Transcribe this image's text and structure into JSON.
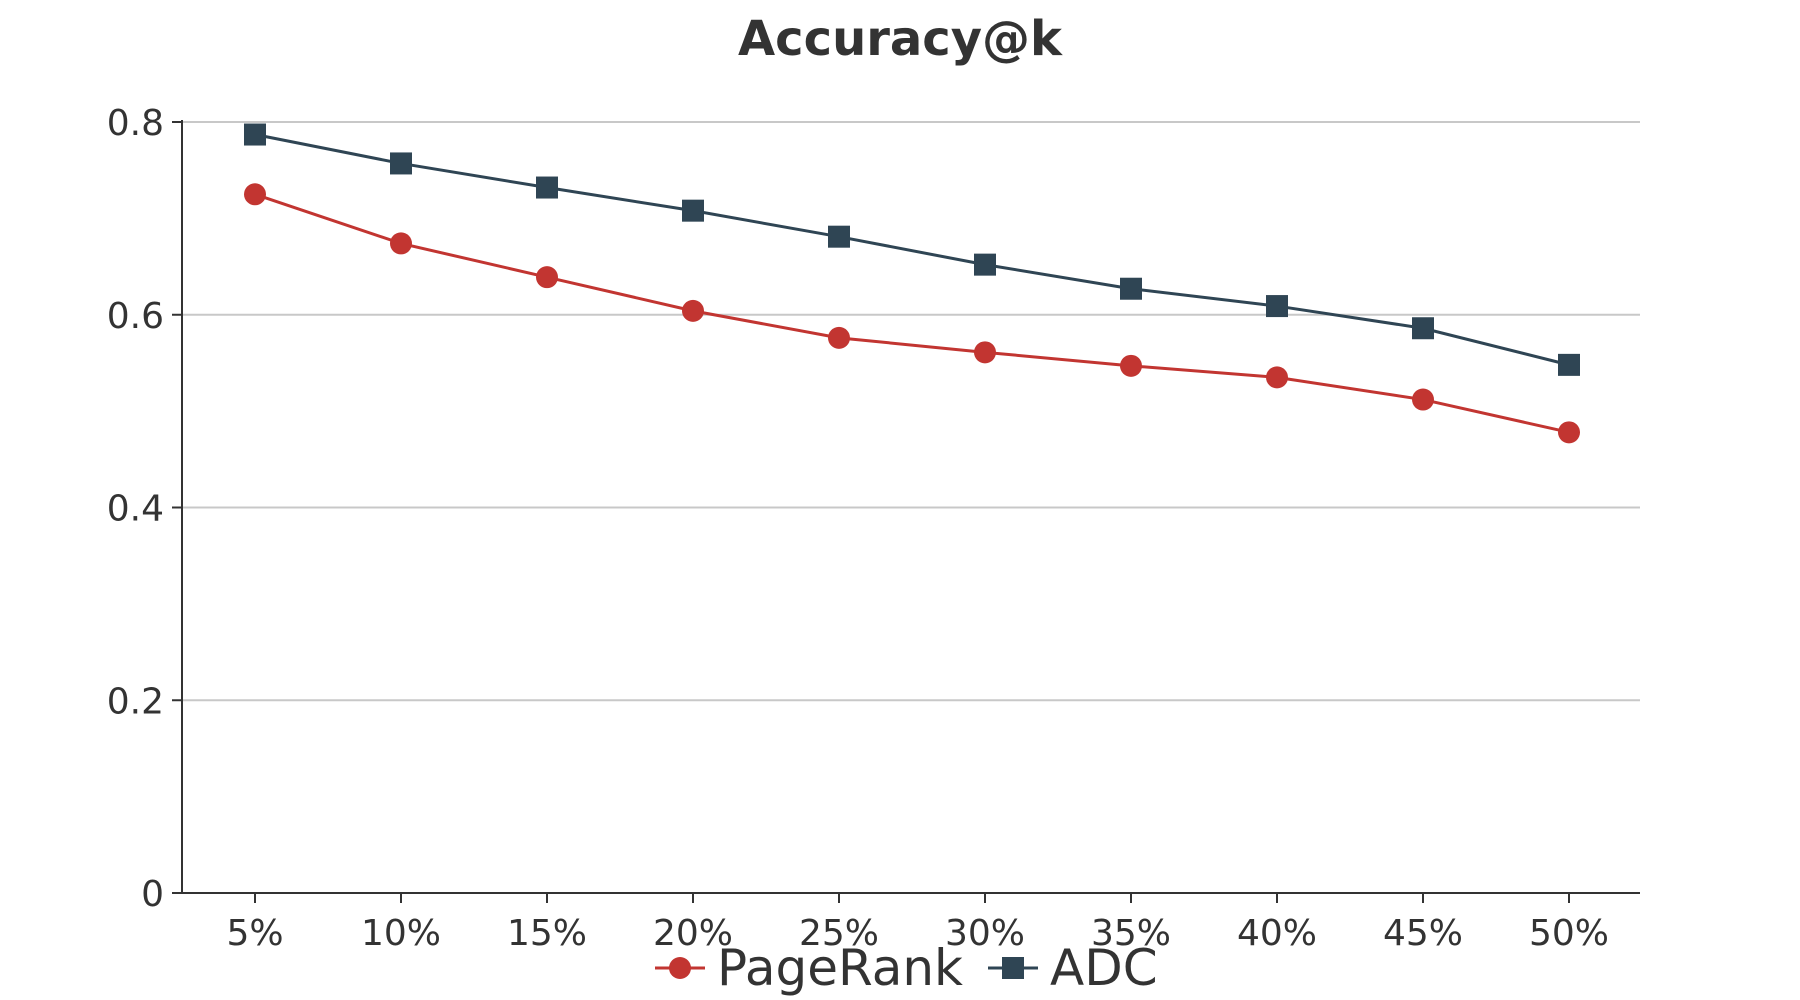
{
  "chart_data": {
    "type": "line",
    "title": "Accuracy@k",
    "xlabel": "",
    "ylabel": "",
    "categories": [
      "5%",
      "10%",
      "15%",
      "20%",
      "25%",
      "30%",
      "35%",
      "40%",
      "45%",
      "50%"
    ],
    "ylim": [
      0,
      0.8
    ],
    "yticks": [
      "0",
      "0.2",
      "0.4",
      "0.6",
      "0.8"
    ],
    "grid": "horizontal",
    "legend_position": "bottom-center",
    "series": [
      {
        "name": "PageRank",
        "color": "#c23531",
        "marker": "circle",
        "values": [
          0.725,
          0.674,
          0.639,
          0.604,
          0.576,
          0.561,
          0.547,
          0.535,
          0.512,
          0.478
        ]
      },
      {
        "name": "ADC",
        "color": "#2f4554",
        "marker": "square",
        "values": [
          0.787,
          0.757,
          0.732,
          0.708,
          0.681,
          0.652,
          0.627,
          0.609,
          0.586,
          0.548
        ]
      }
    ]
  }
}
